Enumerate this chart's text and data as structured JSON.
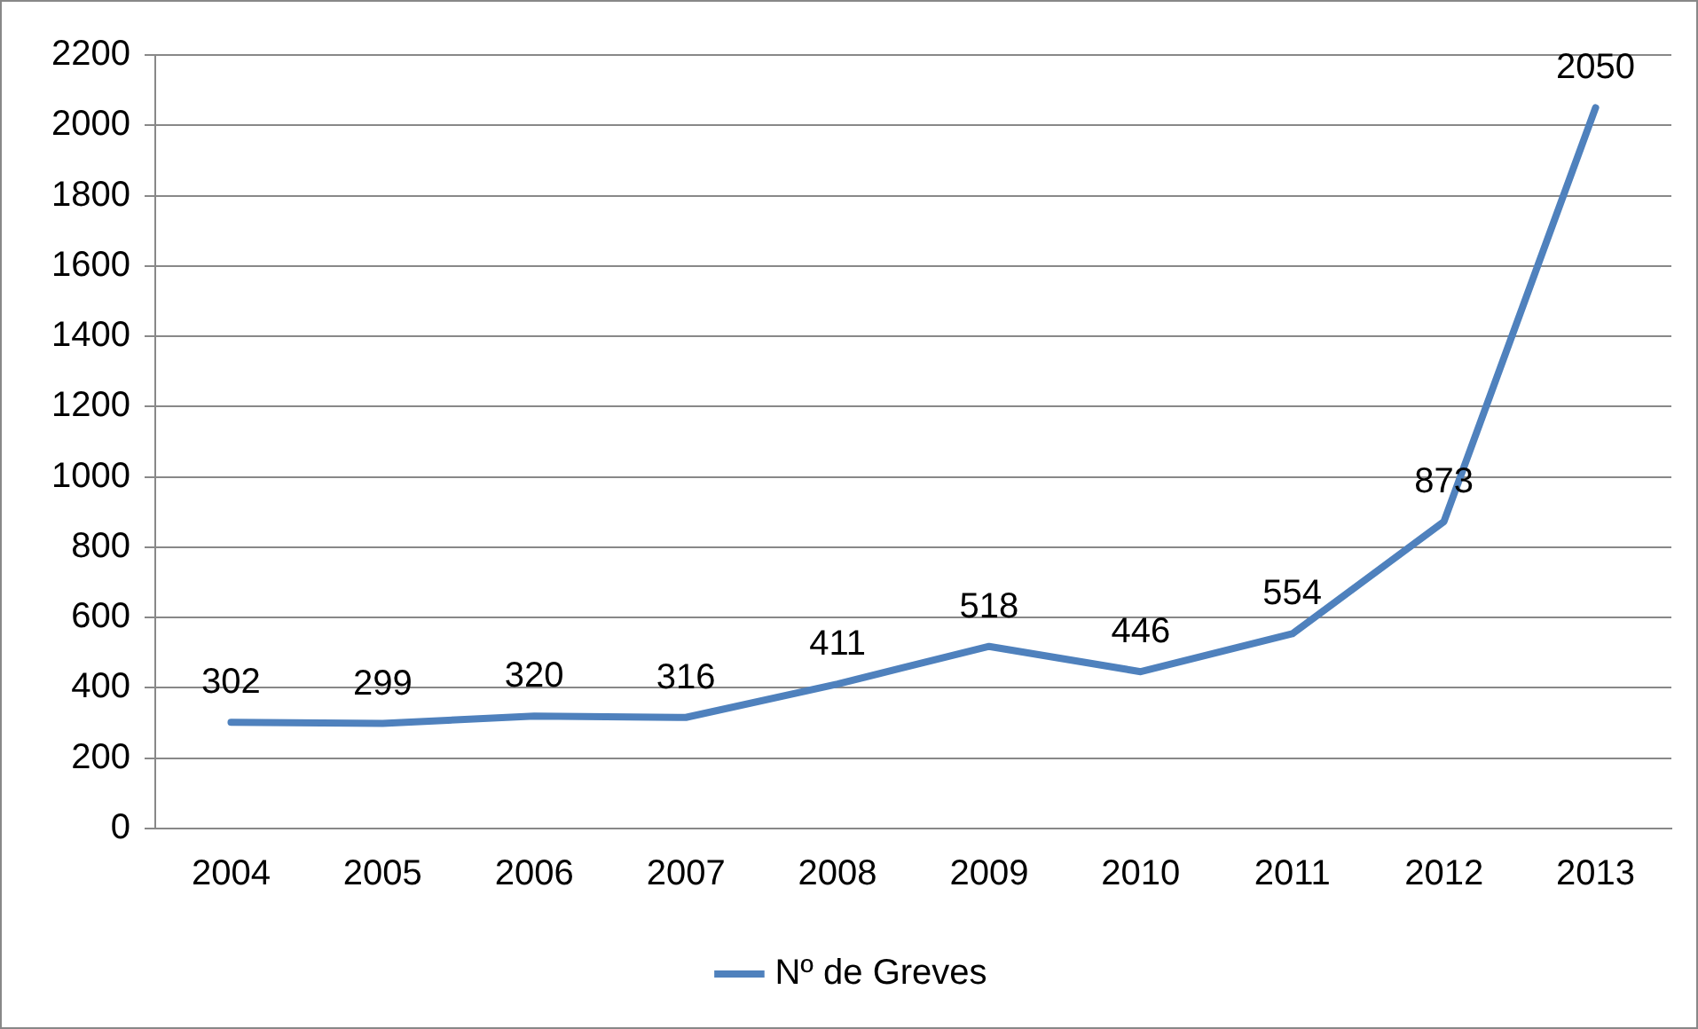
{
  "chart_data": {
    "type": "line",
    "categories": [
      "2004",
      "2005",
      "2006",
      "2007",
      "2008",
      "2009",
      "2010",
      "2011",
      "2012",
      "2013"
    ],
    "series": [
      {
        "name": "Nº de Greves",
        "color": "#4f81bd",
        "values": [
          302,
          299,
          320,
          316,
          411,
          518,
          446,
          554,
          873,
          2050
        ]
      }
    ],
    "ylim": [
      0,
      2200
    ],
    "yticks": [
      0,
      200,
      400,
      600,
      800,
      1000,
      1200,
      1400,
      1600,
      1800,
      2000,
      2200
    ],
    "grid": "y",
    "legend": "bottom",
    "data_labels": true,
    "marker": "none",
    "line_style": "solid"
  }
}
